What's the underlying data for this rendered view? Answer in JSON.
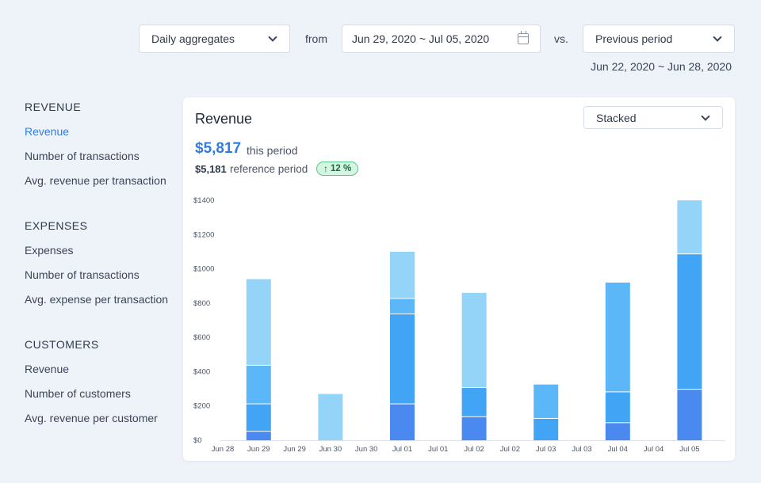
{
  "controls": {
    "aggregation": "Daily aggregates",
    "from_label": "from",
    "date_range": "Jun 29, 2020 ~ Jul 05, 2020",
    "vs_label": "vs.",
    "comparison": "Previous period",
    "reference_range": "Jun 22, 2020 ~ Jun 28, 2020"
  },
  "sidebar": {
    "groups": [
      {
        "heading": "REVENUE",
        "items": [
          "Revenue",
          "Number of transactions",
          "Avg. revenue per transaction"
        ]
      },
      {
        "heading": "EXPENSES",
        "items": [
          "Expenses",
          "Number of transactions",
          "Avg. expense per transaction"
        ]
      },
      {
        "heading": "CUSTOMERS",
        "items": [
          "Revenue",
          "Number of customers",
          "Avg. revenue per customer"
        ]
      }
    ],
    "active": "Revenue"
  },
  "card": {
    "title": "Revenue",
    "mode": "Stacked",
    "current_value": "$5,817",
    "current_label": "this period",
    "reference_value": "$5,181",
    "reference_label": "reference period",
    "change": "12 %",
    "change_direction": "up"
  },
  "colors": {
    "accent": "#2f7de1",
    "bar_dark": "#4a8af0",
    "bar_mid": "#42a4f5",
    "bar_light": "#5bb7f7",
    "bar_pale": "#93d4f8",
    "badge_bg": "#d3f5e2",
    "badge_border": "#55c98a"
  },
  "chart_data": {
    "type": "bar",
    "stacked": true,
    "x_tick_labels": [
      "Jun 28",
      "Jun 29",
      "Jun 29",
      "Jun 30",
      "Jun 30",
      "Jul 01",
      "Jul 01",
      "Jul 02",
      "Jul 02",
      "Jul 03",
      "Jul 03",
      "Jul 04",
      "Jul 04",
      "Jul 05"
    ],
    "y_ticks": [
      "$0",
      "$200",
      "$400",
      "$600",
      "$800",
      "$1000",
      "$1200",
      "$1400"
    ],
    "ylim": [
      0,
      1400
    ],
    "categories": [
      "Jun 29",
      "Jun 30",
      "Jul 01",
      "Jul 02",
      "Jul 03",
      "Jul 04",
      "Jul 05"
    ],
    "bars": [
      {
        "category": "Jun 29",
        "segments": [
          {
            "value": 50,
            "color": "#4a8af0"
          },
          {
            "value": 160,
            "color": "#42a4f5"
          },
          {
            "value": 225,
            "color": "#5bb7f7"
          },
          {
            "value": 505,
            "color": "#93d4f8"
          }
        ]
      },
      {
        "category": "Jun 30",
        "segments": [
          {
            "value": 270,
            "color": "#93d4f8"
          }
        ]
      },
      {
        "category": "Jul 01",
        "segments": [
          {
            "value": 210,
            "color": "#4a8af0"
          },
          {
            "value": 525,
            "color": "#42a4f5"
          },
          {
            "value": 90,
            "color": "#5bb7f7"
          },
          {
            "value": 275,
            "color": "#93d4f8"
          }
        ]
      },
      {
        "category": "Jul 02",
        "segments": [
          {
            "value": 135,
            "color": "#4a8af0"
          },
          {
            "value": 170,
            "color": "#42a4f5"
          },
          {
            "value": 555,
            "color": "#93d4f8"
          }
        ]
      },
      {
        "category": "Jul 03",
        "segments": [
          {
            "value": 125,
            "color": "#42a4f5"
          },
          {
            "value": 200,
            "color": "#5bb7f7"
          }
        ]
      },
      {
        "category": "Jul 04",
        "segments": [
          {
            "value": 100,
            "color": "#4a8af0"
          },
          {
            "value": 180,
            "color": "#42a4f5"
          },
          {
            "value": 640,
            "color": "#5bb7f7"
          }
        ]
      },
      {
        "category": "Jul 05",
        "segments": [
          {
            "value": 295,
            "color": "#4a8af0"
          },
          {
            "value": 790,
            "color": "#42a4f5"
          },
          {
            "value": 315,
            "color": "#93d4f8"
          }
        ]
      }
    ]
  }
}
